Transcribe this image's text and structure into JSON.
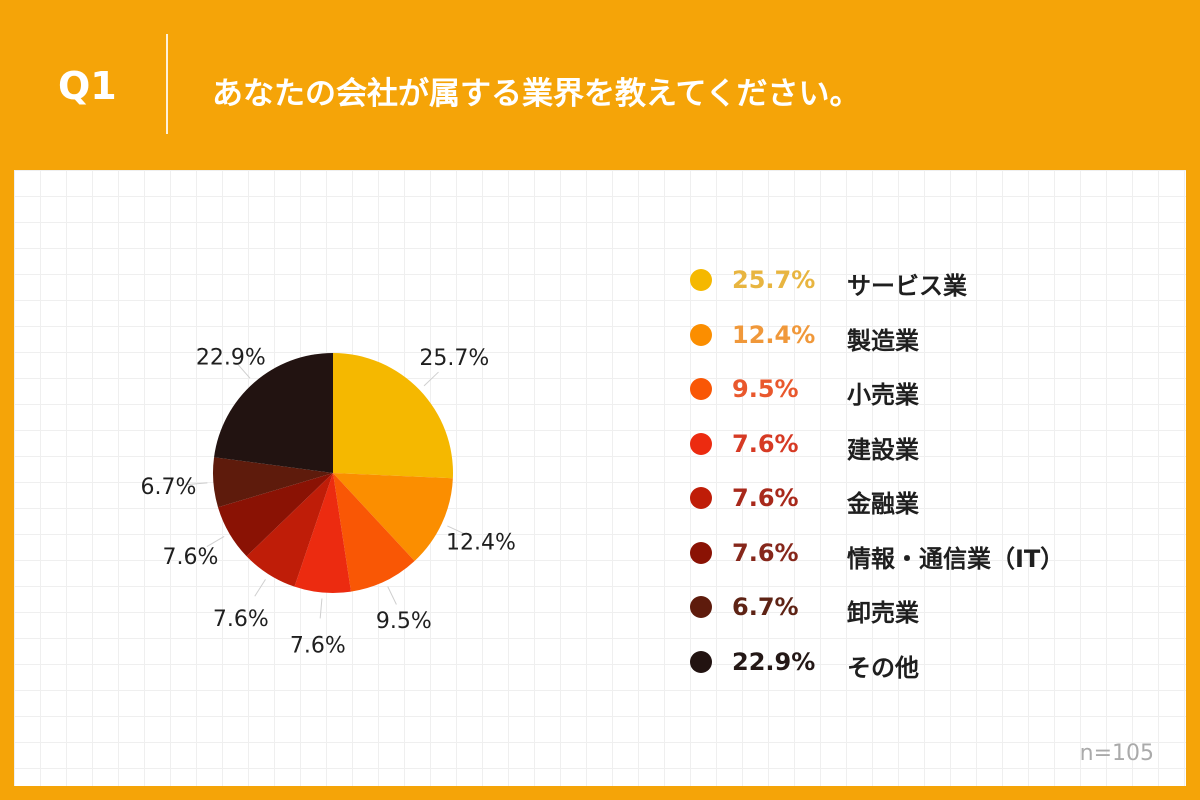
{
  "header": {
    "number": "Q1",
    "question": "あなたの会社が属する業界を教えてください。"
  },
  "chart_data": {
    "type": "pie",
    "categories": [
      "サービス業",
      "製造業",
      "小売業",
      "建設業",
      "金融業",
      "情報・通信業（IT）",
      "卸売業",
      "その他"
    ],
    "values": [
      25.7,
      12.4,
      9.5,
      7.6,
      7.6,
      7.6,
      6.7,
      22.9
    ],
    "slice_labels": [
      "25.7%",
      "12.4%",
      "9.5%",
      "7.6%",
      "7.6%",
      "7.6%",
      "6.7%",
      "22.9%"
    ],
    "colors": [
      "#F5B800",
      "#FB8E00",
      "#F95705",
      "#EC2B10",
      "#BF1D08",
      "#8A1204",
      "#5E1B0C",
      "#221311"
    ],
    "legend_pct_colors": [
      "#E8B540",
      "#F0983A",
      "#E9582D",
      "#D63A24",
      "#A8291B",
      "#86271B",
      "#5E2315",
      "#241816"
    ],
    "legend_position": "right"
  },
  "legend": {
    "items": [
      {
        "pct": "25.7%",
        "label": "サービス業"
      },
      {
        "pct": "12.4%",
        "label": "製造業"
      },
      {
        "pct": "9.5%",
        "label": "小売業"
      },
      {
        "pct": "7.6%",
        "label": "建設業"
      },
      {
        "pct": "7.6%",
        "label": "金融業"
      },
      {
        "pct": "7.6%",
        "label": "情報・通信業（IT）"
      },
      {
        "pct": "6.7%",
        "label": "卸売業"
      },
      {
        "pct": "22.9%",
        "label": "その他"
      }
    ]
  },
  "footer": {
    "n": "n=105"
  }
}
